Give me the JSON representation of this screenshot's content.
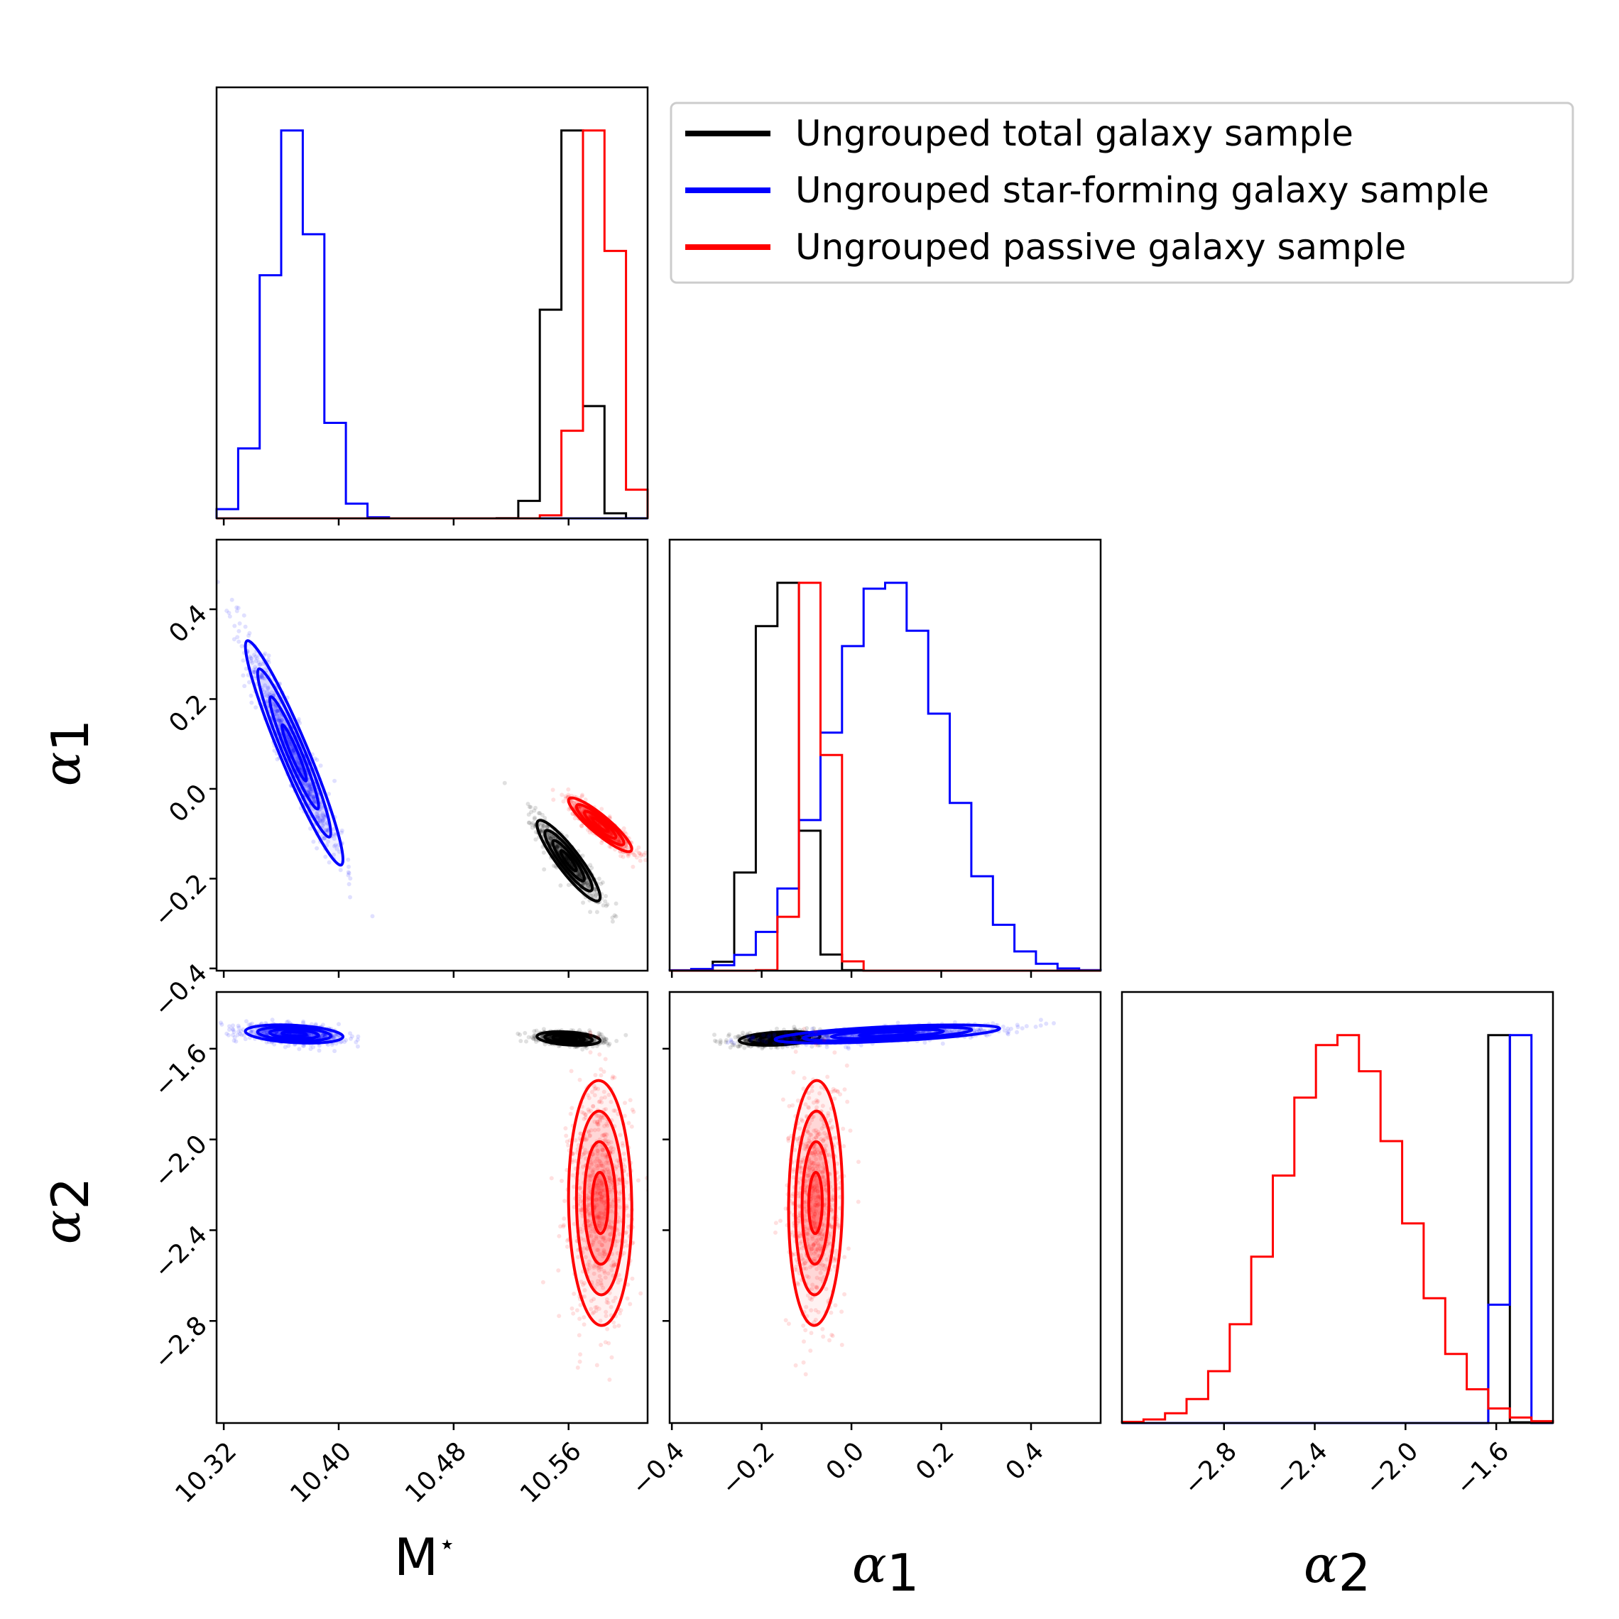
{
  "chart_data": {
    "type": "corner",
    "parameters": [
      {
        "key": "mstar",
        "label_main": "M",
        "label_sup": "⋆",
        "range": [
          10.315,
          10.615
        ],
        "ticks": [
          10.32,
          10.4,
          10.48,
          10.56
        ],
        "tick_labels": [
          "10.32",
          "10.40",
          "10.48",
          "10.56"
        ]
      },
      {
        "key": "alpha1",
        "label_main": "α",
        "label_sub": "1",
        "range": [
          -0.405,
          0.555
        ],
        "ticks": [
          -0.4,
          -0.2,
          0.0,
          0.2,
          0.4
        ],
        "tick_labels": [
          "−0.4",
          "−0.2",
          "0.0",
          "0.2",
          "0.4"
        ]
      },
      {
        "key": "alpha2",
        "label_main": "α",
        "label_sub": "2",
        "range": [
          -3.25,
          -1.35
        ],
        "ticks": [
          -2.8,
          -2.4,
          -2.0,
          -1.6
        ],
        "tick_labels": [
          "−2.8",
          "−2.4",
          "−2.0",
          "−1.6"
        ]
      }
    ],
    "legend": {
      "position": "top-right",
      "entries": [
        {
          "label": "Ungrouped total galaxy sample",
          "color": "#000000"
        },
        {
          "label": "Ungrouped star-forming galaxy sample",
          "color": "#0000ff"
        },
        {
          "label": "Ungrouped passive galaxy sample",
          "color": "#ff0000"
        }
      ]
    },
    "series": [
      {
        "name": "Ungrouped total galaxy sample",
        "color": "#000000",
        "mean": [
          10.56,
          -0.16,
          -1.555
        ],
        "std": [
          0.011,
          0.045,
          0.015
        ],
        "corr": {
          "m_a1": -0.9,
          "m_a2": -0.3,
          "a1_a2": 0.3
        }
      },
      {
        "name": "Ungrouped star-forming galaxy sample",
        "color": "#0000ff",
        "mean": [
          10.369,
          0.08,
          -1.535
        ],
        "std": [
          0.017,
          0.125,
          0.02
        ],
        "corr": {
          "m_a1": -0.95,
          "m_a2": -0.3,
          "a1_a2": 0.6
        }
      },
      {
        "name": "Ungrouped passive galaxy sample",
        "color": "#ff0000",
        "mean": [
          10.582,
          -0.08,
          -2.28
        ],
        "std": [
          0.011,
          0.03,
          0.27
        ],
        "corr": {
          "m_a1": -0.9,
          "m_a2": -0.05,
          "a1_a2": 0.05
        }
      }
    ]
  }
}
